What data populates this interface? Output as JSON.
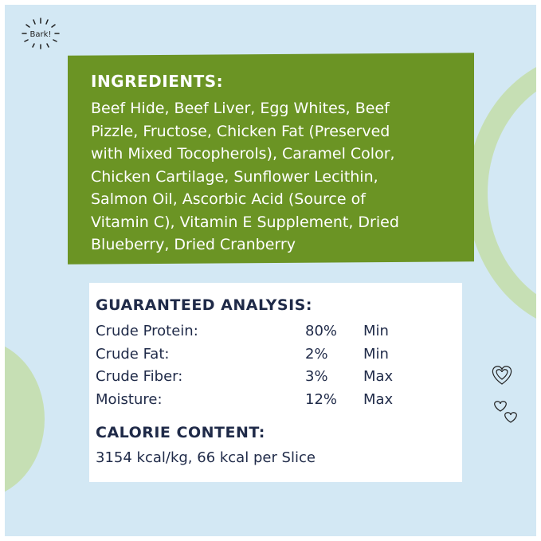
{
  "badge": {
    "text": "Bark!"
  },
  "ingredients": {
    "title": "INGREDIENTS:",
    "lines": [
      "Beef Hide, Beef Liver, Egg Whites, Beef",
      "Pizzle, Fructose, Chicken Fat (Preserved",
      "with Mixed Tocopherols), Caramel Color,",
      "Chicken Cartilage, Sunflower Lecithin,",
      "Salmon Oil, Ascorbic Acid (Source of",
      "Vitamin C), Vitamin E Supplement, Dried",
      "Blueberry, Dried Cranberry"
    ]
  },
  "analysis": {
    "title": "GUARANTEED ANALYSIS:",
    "rows": [
      {
        "label": "Crude Protein:",
        "value": "80%",
        "qualifier": "Min"
      },
      {
        "label": "Crude Fat:",
        "value": "2%",
        "qualifier": "Min"
      },
      {
        "label": "Crude Fiber:",
        "value": "3%",
        "qualifier": "Max"
      },
      {
        "label": "Moisture:",
        "value": "12%",
        "qualifier": "Max"
      }
    ]
  },
  "calorie": {
    "title": "CALORIE CONTENT:",
    "text": "3154 kcal/kg, 66 kcal per Slice"
  },
  "colors": {
    "background": "#d3e8f4",
    "green_panel": "#6b9424",
    "text_dark": "#1f2a48",
    "accent_circle": "#c6dfb4"
  }
}
